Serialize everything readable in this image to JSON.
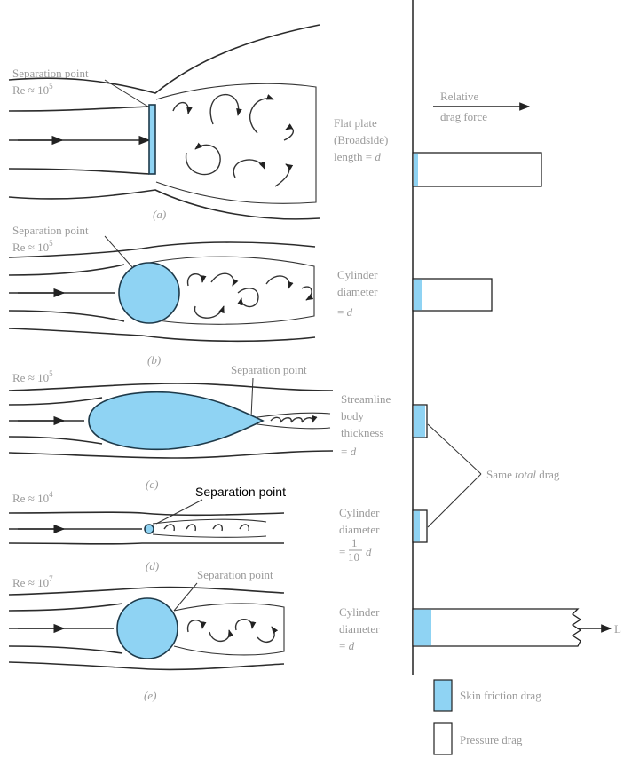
{
  "colors": {
    "skin_friction": "#8fd3f3",
    "pressure": "#ffffff",
    "line": "#222222",
    "label_gray": "#9a9a9a"
  },
  "header": {
    "axis_label_line1": "Relative",
    "axis_label_line2": "drag force"
  },
  "panels": [
    {
      "id": "a",
      "caption": "(a)",
      "re_text": "Re ≈ 10",
      "re_exp": "5",
      "separation_label": "Separation point",
      "body_label_lines": [
        "Flat plate",
        "(Broadside)",
        "length = "
      ],
      "body_label_var": "d",
      "skin_fraction": 0.02,
      "relative_drag": 1.0
    },
    {
      "id": "b",
      "caption": "(b)",
      "re_text": "Re ≈ 10",
      "re_exp": "5",
      "separation_label": "Separation point",
      "body_label_lines": [
        "Cylinder",
        "diameter",
        "= "
      ],
      "body_label_var": "d",
      "skin_fraction": 0.1,
      "relative_drag": 0.6
    },
    {
      "id": "c",
      "caption": "(c)",
      "re_text": "Re ≈ 10",
      "re_exp": "5",
      "separation_label": "Separation point",
      "body_label_lines": [
        "Streamline",
        "body",
        "thickness",
        "= "
      ],
      "body_label_var": "d",
      "skin_fraction": 0.9,
      "relative_drag": 0.1
    },
    {
      "id": "d",
      "caption": "(d)",
      "re_text": "Re ≈ 10",
      "re_exp": "4",
      "separation_label": "Separation point",
      "body_label_lines": [
        "Cylinder",
        "diameter",
        "= "
      ],
      "body_label_frac_num": "1",
      "body_label_frac_den": "10",
      "body_label_var": "d",
      "skin_fraction": 0.45,
      "relative_drag": 0.1
    },
    {
      "id": "e",
      "caption": "(e)",
      "re_text": "Re ≈ 10",
      "re_exp": "7",
      "separation_label": "Separation point",
      "body_label_lines": [
        "Cylinder",
        "diameter",
        "= "
      ],
      "body_label_var": "d",
      "skin_fraction": 0.1,
      "relative_drag": "L"
    }
  ],
  "annotations": {
    "same_total_pre": "Same ",
    "same_total_ital": "total",
    "same_total_post": " drag",
    "bar_break_label": "L"
  },
  "legend": {
    "skin_label": "Skin friction drag",
    "pressure_label": "Pressure drag"
  }
}
